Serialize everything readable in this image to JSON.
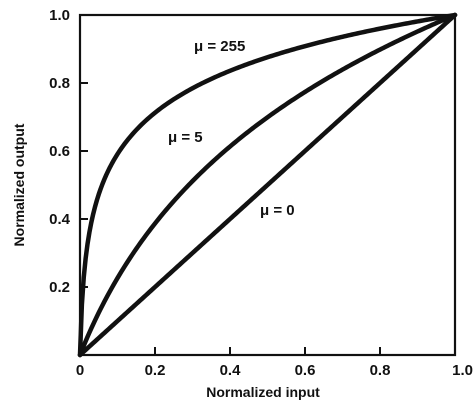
{
  "chart_data": {
    "type": "line",
    "title": "",
    "xlabel": "Normalized input",
    "ylabel": "Normalized output",
    "xlim": [
      0,
      1
    ],
    "ylim": [
      0,
      1
    ],
    "xticks": [
      "0",
      "0.2",
      "0.4",
      "0.6",
      "0.8",
      "1.0"
    ],
    "yticks": [
      "0.2",
      "0.4",
      "0.6",
      "0.8",
      "1.0"
    ],
    "grid": false,
    "series": [
      {
        "name": "μ = 255",
        "mu": 255
      },
      {
        "name": "μ = 5",
        "mu": 5
      },
      {
        "name": "μ = 0",
        "mu": 0
      }
    ],
    "line_color": "#111111"
  }
}
